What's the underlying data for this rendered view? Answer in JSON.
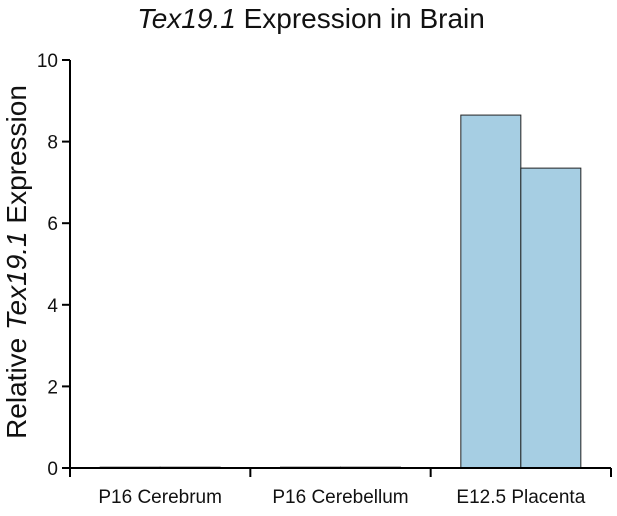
{
  "chart_data": {
    "type": "bar",
    "title": {
      "italic_part": "Tex19.1",
      "rest": " Expression in Brain"
    },
    "ylabel": {
      "prefix": "Relative ",
      "italic_part": "Tex19.1",
      "suffix": " Expression"
    },
    "xlabel": "",
    "ylim": [
      0,
      10
    ],
    "yticks": [
      "0",
      "2",
      "4",
      "6",
      "8",
      "10"
    ],
    "categories": [
      "P16 Cerebrum",
      "P16 Cerebellum",
      "E12.5 Placenta"
    ],
    "bars_per_category": 2,
    "series": [
      {
        "values": [
          0.0,
          0.0,
          8.65
        ]
      },
      {
        "values": [
          0.0,
          0.02,
          7.35
        ]
      }
    ],
    "bar_color": "#a6cee3",
    "grid": false
  }
}
